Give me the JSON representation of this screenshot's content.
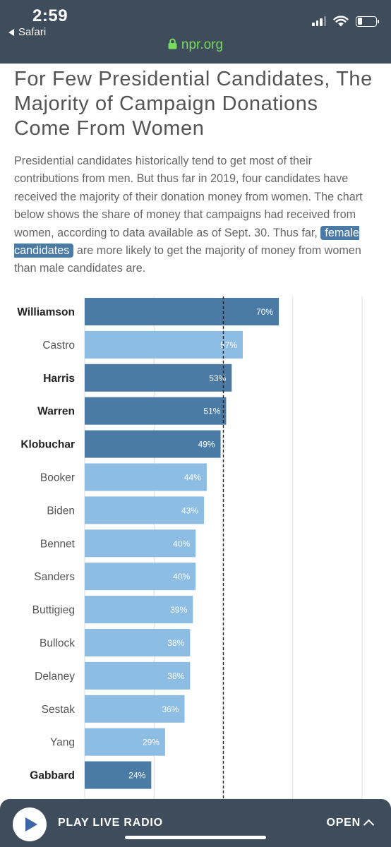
{
  "status_bar": {
    "time": "2:59",
    "back_app": "Safari",
    "battery_level": 0.25
  },
  "browser": {
    "url": "npr.org",
    "url_color": "#76dc5a"
  },
  "article": {
    "headline": "For Few Presidential Candidates, The Majority of Campaign Donations Come From Women",
    "intro_before": "Presidential candidates historically tend to get most of their contributions from men. But thus far in 2019, four candidates have received the majority of their donation money from women. The chart below shows the share of money that campaigns had received from women, according to data available as of Sept. 30. Thus far,",
    "intro_highlight": "female candidates",
    "intro_after": "are more likely to get the majority of money from women than male candidates are."
  },
  "chart_data": {
    "type": "bar",
    "orientation": "horizontal",
    "categories": [
      "Williamson",
      "Castro",
      "Harris",
      "Warren",
      "Klobuchar",
      "Booker",
      "Biden",
      "Bennet",
      "Sanders",
      "Buttigieg",
      "Bullock",
      "Delaney",
      "Sestak",
      "Yang",
      "Gabbard"
    ],
    "values": [
      70,
      57,
      53,
      51,
      49,
      44,
      43,
      40,
      40,
      39,
      38,
      38,
      36,
      29,
      24
    ],
    "value_labels": [
      "70%",
      "57%",
      "53%",
      "51%",
      "49%",
      "44%",
      "43%",
      "40%",
      "40%",
      "39%",
      "38%",
      "38%",
      "36%",
      "29%",
      "24%"
    ],
    "female": [
      true,
      false,
      true,
      true,
      true,
      false,
      false,
      false,
      false,
      false,
      false,
      false,
      false,
      false,
      true
    ],
    "xlim": [
      0,
      100
    ],
    "gridlines": [
      0,
      25,
      50,
      75,
      100
    ],
    "reference_line": 50,
    "reference_line_style": "dashed",
    "colors": {
      "female": "#4b7ba5",
      "male": "#8dbde3",
      "label": "#ffffff",
      "grid": "#dddddd",
      "reference": "#222222"
    },
    "title": "",
    "xlabel": "",
    "ylabel": ""
  },
  "radio_bar": {
    "play_label": "PLAY LIVE RADIO",
    "open_label": "OPEN",
    "play_icon": "play-icon",
    "open_icon": "chevron-up-icon"
  }
}
